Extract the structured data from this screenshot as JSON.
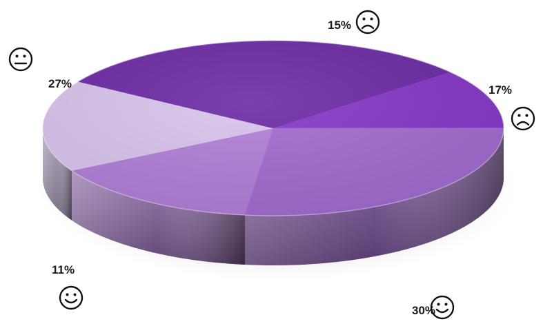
{
  "chart_data": {
    "type": "pie",
    "style": "3d",
    "slices": [
      {
        "label": "15%",
        "value": 15,
        "color": "#b07ed6",
        "icon": "frown-face-icon",
        "mood": "sad"
      },
      {
        "label": "17%",
        "value": 17,
        "color": "#d7c4ec",
        "icon": "frown-face-icon",
        "mood": "sad"
      },
      {
        "label": "30%",
        "value": 30,
        "color": "#6b2aa3",
        "icon": "smile-face-icon",
        "mood": "happy"
      },
      {
        "label": "11%",
        "value": 11,
        "color": "#8436c7",
        "icon": "smile-face-icon",
        "mood": "happy"
      },
      {
        "label": "27%",
        "value": 27,
        "color": "#a06bcf",
        "icon": "neutral-face-icon",
        "mood": "neutral"
      }
    ],
    "legend": "none"
  }
}
